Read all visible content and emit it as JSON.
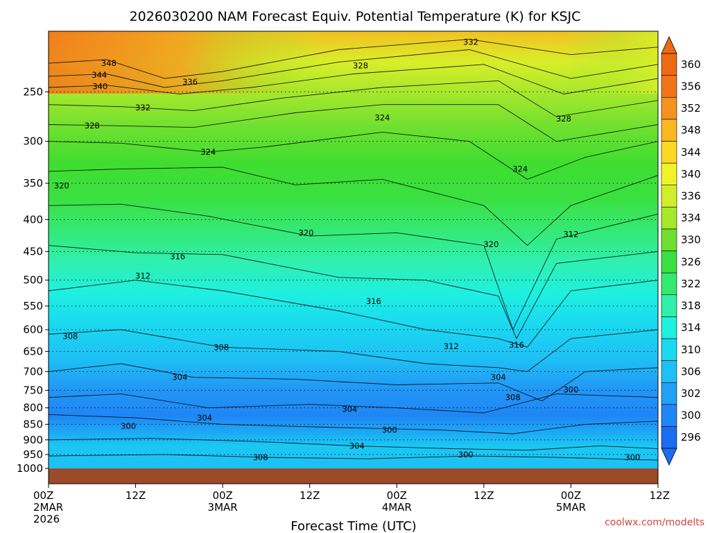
{
  "title": "2026030200 NAM Forecast Equiv. Potential Temperature (K) for KSJC",
  "credit": "coolwx.com/modelts",
  "chart_data": {
    "type": "heatmap",
    "title": "2026030200 NAM Forecast Equiv. Potential Temperature (K) for KSJC",
    "xlabel": "Forecast Time (UTC)",
    "ylabel": "",
    "y_axis_scale": "log",
    "ylim": [
      1000,
      200
    ],
    "xlim": [
      0,
      84
    ],
    "grid": true,
    "y_ticks": [
      250,
      300,
      350,
      400,
      450,
      500,
      550,
      600,
      650,
      700,
      750,
      800,
      850,
      900,
      950,
      1000
    ],
    "x_ticks": [
      {
        "hour": 0,
        "label": "00Z",
        "sub1": "2MAR",
        "sub2": "2026"
      },
      {
        "hour": 12,
        "label": "12Z",
        "sub1": "",
        "sub2": ""
      },
      {
        "hour": 24,
        "label": "00Z",
        "sub1": "3MAR",
        "sub2": ""
      },
      {
        "hour": 36,
        "label": "12Z",
        "sub1": "",
        "sub2": ""
      },
      {
        "hour": 48,
        "label": "00Z",
        "sub1": "4MAR",
        "sub2": ""
      },
      {
        "hour": 60,
        "label": "12Z",
        "sub1": "",
        "sub2": ""
      },
      {
        "hour": 72,
        "label": "00Z",
        "sub1": "5MAR",
        "sub2": ""
      },
      {
        "hour": 84,
        "label": "12Z",
        "sub1": "",
        "sub2": ""
      }
    ],
    "colorbar": {
      "levels": [
        296,
        300,
        302,
        306,
        310,
        314,
        318,
        322,
        326,
        330,
        334,
        336,
        340,
        344,
        348,
        352,
        356,
        360
      ],
      "colors": [
        "#1a6cf0",
        "#1f86f5",
        "#21a0f5",
        "#1ec0f5",
        "#1ad9f0",
        "#1ff0e0",
        "#2ff0a8",
        "#35e870",
        "#3be040",
        "#6fe030",
        "#a6e82c",
        "#d0ee2a",
        "#f2f22a",
        "#f9d826",
        "#f8b822",
        "#f6921e",
        "#f2741a",
        "#ec6a14"
      ]
    },
    "contour_labels": [
      {
        "text": "348",
        "hour": 8.3,
        "p": 225
      },
      {
        "text": "344",
        "hour": 7.0,
        "p": 235
      },
      {
        "text": "340",
        "hour": 7.1,
        "p": 245
      },
      {
        "text": "336",
        "hour": 19.5,
        "p": 241
      },
      {
        "text": "332",
        "hour": 13.0,
        "p": 265
      },
      {
        "text": "328",
        "hour": 6.0,
        "p": 283
      },
      {
        "text": "332",
        "hour": 58.2,
        "p": 208
      },
      {
        "text": "328",
        "hour": 43.0,
        "p": 227
      },
      {
        "text": "324",
        "hour": 46.0,
        "p": 275
      },
      {
        "text": "324",
        "hour": 22.0,
        "p": 312
      },
      {
        "text": "328",
        "hour": 71.0,
        "p": 276
      },
      {
        "text": "324",
        "hour": 65.0,
        "p": 332
      },
      {
        "text": "320",
        "hour": 1.8,
        "p": 353
      },
      {
        "text": "320",
        "hour": 35.5,
        "p": 420
      },
      {
        "text": "320",
        "hour": 61.0,
        "p": 438
      },
      {
        "text": "312",
        "hour": 72.0,
        "p": 422
      },
      {
        "text": "316",
        "hour": 17.8,
        "p": 458
      },
      {
        "text": "312",
        "hour": 13.0,
        "p": 492
      },
      {
        "text": "316",
        "hour": 44.8,
        "p": 540
      },
      {
        "text": "308",
        "hour": 3.0,
        "p": 615
      },
      {
        "text": "308",
        "hour": 23.8,
        "p": 640
      },
      {
        "text": "312",
        "hour": 55.5,
        "p": 638
      },
      {
        "text": "316",
        "hour": 64.5,
        "p": 635
      },
      {
        "text": "304",
        "hour": 18.1,
        "p": 715
      },
      {
        "text": "304",
        "hour": 62.0,
        "p": 715
      },
      {
        "text": "308",
        "hour": 64.0,
        "p": 770
      },
      {
        "text": "300",
        "hour": 72.0,
        "p": 748
      },
      {
        "text": "304",
        "hour": 41.5,
        "p": 804
      },
      {
        "text": "304",
        "hour": 21.5,
        "p": 830
      },
      {
        "text": "300",
        "hour": 11.0,
        "p": 856
      },
      {
        "text": "300",
        "hour": 47.0,
        "p": 868
      },
      {
        "text": "304",
        "hour": 42.5,
        "p": 920
      },
      {
        "text": "300",
        "hour": 57.5,
        "p": 950
      },
      {
        "text": "308",
        "hour": 29.2,
        "p": 960
      },
      {
        "text": "300",
        "hour": 80.5,
        "p": 960
      }
    ],
    "surface_pressure": 1005
  }
}
